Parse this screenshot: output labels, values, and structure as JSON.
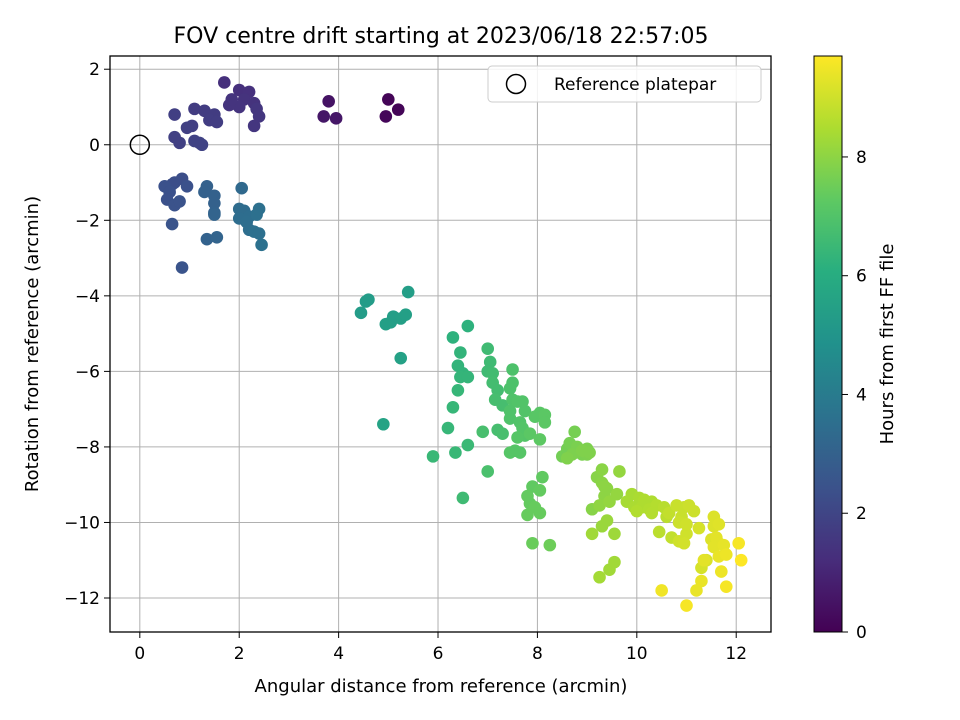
{
  "chart_data": {
    "type": "scatter",
    "title": "FOV centre drift starting at 2023/06/18 22:57:05",
    "xlabel": "Angular distance from reference (arcmin)",
    "ylabel": "Rotation from reference (arcmin)",
    "xlim": [
      -0.6,
      12.7
    ],
    "ylim": [
      -12.9,
      2.35
    ],
    "xticks": [
      0,
      2,
      4,
      6,
      8,
      10,
      12
    ],
    "yticks": [
      -12,
      -10,
      -8,
      -6,
      -4,
      -2,
      0,
      2
    ],
    "grid": true,
    "legend": {
      "position": "top-right",
      "entries": [
        "Reference platepar"
      ]
    },
    "reference_point": {
      "x": 0,
      "y": 0
    },
    "colorbar": {
      "label": "Hours from first FF file",
      "colormap": "viridis",
      "range": [
        0,
        9.7
      ],
      "ticks": [
        0,
        2,
        4,
        6,
        8
      ]
    },
    "points": [
      [
        5.0,
        1.2,
        0.1
      ],
      [
        5.2,
        0.93,
        0.1
      ],
      [
        4.95,
        0.75,
        0.15
      ],
      [
        3.8,
        1.15,
        0.5
      ],
      [
        3.7,
        0.75,
        0.6
      ],
      [
        3.95,
        0.7,
        0.6
      ],
      [
        1.7,
        1.65,
        1.3
      ],
      [
        2.0,
        1.45,
        1.3
      ],
      [
        2.2,
        1.4,
        1.35
      ],
      [
        2.1,
        1.2,
        1.4
      ],
      [
        2.3,
        1.1,
        1.4
      ],
      [
        2.0,
        1.0,
        1.45
      ],
      [
        1.8,
        1.05,
        1.45
      ],
      [
        1.85,
        1.2,
        1.45
      ],
      [
        2.35,
        0.95,
        1.5
      ],
      [
        2.4,
        0.75,
        1.5
      ],
      [
        2.3,
        0.5,
        1.5
      ],
      [
        1.3,
        0.9,
        1.7
      ],
      [
        1.5,
        0.8,
        1.7
      ],
      [
        1.1,
        0.95,
        1.7
      ],
      [
        1.4,
        0.65,
        1.75
      ],
      [
        1.55,
        0.6,
        1.75
      ],
      [
        0.7,
        0.8,
        1.8
      ],
      [
        1.05,
        0.5,
        1.8
      ],
      [
        0.95,
        0.45,
        1.85
      ],
      [
        0.7,
        0.2,
        1.85
      ],
      [
        0.8,
        0.05,
        1.85
      ],
      [
        1.2,
        0.05,
        1.9
      ],
      [
        1.25,
        0.0,
        1.9
      ],
      [
        1.1,
        0.1,
        1.9
      ],
      [
        0.7,
        -1.0,
        2.3
      ],
      [
        0.65,
        -1.05,
        2.3
      ],
      [
        0.85,
        -0.9,
        2.3
      ],
      [
        0.5,
        -1.1,
        2.4
      ],
      [
        0.95,
        -1.1,
        2.4
      ],
      [
        0.6,
        -1.25,
        2.4
      ],
      [
        0.55,
        -1.45,
        2.4
      ],
      [
        0.7,
        -1.6,
        2.45
      ],
      [
        0.8,
        -1.5,
        2.45
      ],
      [
        0.65,
        -2.1,
        2.5
      ],
      [
        0.85,
        -3.25,
        2.5
      ],
      [
        1.35,
        -1.1,
        3.0
      ],
      [
        1.3,
        -1.25,
        3.0
      ],
      [
        1.5,
        -1.35,
        3.0
      ],
      [
        1.5,
        -1.55,
        3.0
      ],
      [
        1.5,
        -1.8,
        3.05
      ],
      [
        1.35,
        -2.5,
        3.05
      ],
      [
        1.55,
        -2.45,
        3.1
      ],
      [
        1.5,
        -1.85,
        3.1
      ],
      [
        2.05,
        -1.15,
        3.3
      ],
      [
        2.0,
        -1.7,
        3.4
      ],
      [
        2.1,
        -1.75,
        3.4
      ],
      [
        2.2,
        -1.9,
        3.45
      ],
      [
        2.0,
        -1.95,
        3.45
      ],
      [
        2.15,
        -2.05,
        3.5
      ],
      [
        2.2,
        -2.25,
        3.5
      ],
      [
        2.3,
        -2.3,
        3.55
      ],
      [
        2.4,
        -2.35,
        3.55
      ],
      [
        2.35,
        -1.85,
        3.55
      ],
      [
        2.4,
        -1.7,
        3.55
      ],
      [
        2.45,
        -2.65,
        3.6
      ],
      [
        4.55,
        -4.15,
        5.3
      ],
      [
        4.6,
        -4.1,
        5.3
      ],
      [
        4.45,
        -4.45,
        5.3
      ],
      [
        5.1,
        -4.55,
        5.4
      ],
      [
        5.25,
        -4.6,
        5.45
      ],
      [
        5.35,
        -4.5,
        5.45
      ],
      [
        5.4,
        -3.9,
        5.4
      ],
      [
        5.05,
        -4.7,
        5.4
      ],
      [
        4.95,
        -4.75,
        5.45
      ],
      [
        5.25,
        -5.65,
        5.5
      ],
      [
        4.9,
        -7.4,
        5.6
      ],
      [
        6.3,
        -5.1,
        6.2
      ],
      [
        6.6,
        -4.8,
        6.2
      ],
      [
        6.45,
        -5.5,
        6.3
      ],
      [
        6.4,
        -5.85,
        6.3
      ],
      [
        6.5,
        -6.05,
        6.3
      ],
      [
        6.45,
        -6.15,
        6.35
      ],
      [
        6.6,
        -6.15,
        6.35
      ],
      [
        6.4,
        -6.5,
        6.4
      ],
      [
        6.3,
        -6.95,
        6.4
      ],
      [
        6.2,
        -7.5,
        6.4
      ],
      [
        6.35,
        -8.15,
        6.45
      ],
      [
        5.9,
        -8.25,
        6.45
      ],
      [
        6.6,
        -7.95,
        6.5
      ],
      [
        6.5,
        -9.35,
        6.6
      ],
      [
        7.0,
        -5.4,
        6.6
      ],
      [
        7.05,
        -5.75,
        6.6
      ],
      [
        7.0,
        -6.0,
        6.6
      ],
      [
        7.1,
        -6.05,
        6.65
      ],
      [
        7.1,
        -6.3,
        6.7
      ],
      [
        7.2,
        -6.5,
        6.7
      ],
      [
        7.15,
        -6.75,
        6.75
      ],
      [
        7.3,
        -6.9,
        6.75
      ],
      [
        7.2,
        -7.55,
        6.75
      ],
      [
        7.3,
        -7.65,
        6.8
      ],
      [
        6.9,
        -7.6,
        6.8
      ],
      [
        7.0,
        -8.65,
        6.85
      ],
      [
        7.5,
        -5.95,
        6.9
      ],
      [
        7.5,
        -6.3,
        6.9
      ],
      [
        7.45,
        -6.45,
        6.9
      ],
      [
        7.5,
        -6.75,
        6.95
      ],
      [
        7.45,
        -7.05,
        6.95
      ],
      [
        7.45,
        -7.25,
        6.95
      ],
      [
        7.7,
        -6.8,
        7.0
      ],
      [
        7.6,
        -6.8,
        7.0
      ],
      [
        7.75,
        -7.05,
        7.0
      ],
      [
        7.65,
        -7.35,
        7.0
      ],
      [
        7.7,
        -7.5,
        7.05
      ],
      [
        7.75,
        -7.7,
        7.05
      ],
      [
        7.6,
        -7.75,
        7.1
      ],
      [
        7.55,
        -8.1,
        7.1
      ],
      [
        7.45,
        -8.15,
        7.1
      ],
      [
        7.65,
        -8.15,
        7.1
      ],
      [
        7.95,
        -7.2,
        7.15
      ],
      [
        8.05,
        -7.1,
        7.15
      ],
      [
        8.15,
        -7.15,
        7.2
      ],
      [
        8.15,
        -7.35,
        7.2
      ],
      [
        7.85,
        -7.65,
        7.2
      ],
      [
        8.05,
        -7.8,
        7.25
      ],
      [
        8.1,
        -8.8,
        7.3
      ],
      [
        7.9,
        -9.05,
        7.3
      ],
      [
        8.05,
        -9.15,
        7.35
      ],
      [
        7.8,
        -9.3,
        7.35
      ],
      [
        7.85,
        -9.5,
        7.35
      ],
      [
        7.95,
        -9.6,
        7.4
      ],
      [
        8.05,
        -9.75,
        7.4
      ],
      [
        7.8,
        -9.8,
        7.4
      ],
      [
        7.9,
        -10.55,
        7.45
      ],
      [
        8.25,
        -10.6,
        7.5
      ],
      [
        8.5,
        -8.25,
        7.6
      ],
      [
        8.6,
        -8.05,
        7.6
      ],
      [
        8.65,
        -7.9,
        7.65
      ],
      [
        8.75,
        -7.6,
        7.65
      ],
      [
        8.8,
        -8.0,
        7.7
      ],
      [
        8.9,
        -8.2,
        7.7
      ],
      [
        9.0,
        -8.05,
        7.75
      ],
      [
        9.0,
        -8.2,
        7.75
      ],
      [
        8.7,
        -8.2,
        7.75
      ],
      [
        8.6,
        -8.3,
        7.8
      ],
      [
        8.9,
        -8.1,
        7.8
      ],
      [
        9.05,
        -8.15,
        7.8
      ],
      [
        9.1,
        -9.65,
        7.9
      ],
      [
        9.2,
        -8.8,
        7.9
      ],
      [
        9.3,
        -8.6,
        7.95
      ],
      [
        9.3,
        -8.95,
        7.95
      ],
      [
        9.35,
        -9.05,
        8.0
      ],
      [
        9.4,
        -9.1,
        8.0
      ],
      [
        9.35,
        -9.3,
        8.0
      ],
      [
        9.25,
        -9.55,
        8.05
      ],
      [
        9.45,
        -9.45,
        8.1
      ],
      [
        9.6,
        -9.25,
        8.1
      ],
      [
        9.65,
        -8.65,
        8.1
      ],
      [
        9.3,
        -10.1,
        8.2
      ],
      [
        9.4,
        -9.95,
        8.2
      ],
      [
        9.55,
        -10.3,
        8.25
      ],
      [
        9.45,
        -11.25,
        8.3
      ],
      [
        9.55,
        -11.05,
        8.3
      ],
      [
        9.25,
        -11.45,
        8.35
      ],
      [
        9.1,
        -10.3,
        8.3
      ],
      [
        9.9,
        -9.25,
        8.4
      ],
      [
        9.8,
        -9.45,
        8.4
      ],
      [
        9.95,
        -9.6,
        8.45
      ],
      [
        10.05,
        -9.35,
        8.45
      ],
      [
        10.15,
        -9.4,
        8.5
      ],
      [
        10.3,
        -9.45,
        8.5
      ],
      [
        10.1,
        -9.6,
        8.5
      ],
      [
        10.0,
        -9.7,
        8.55
      ],
      [
        10.25,
        -9.65,
        8.55
      ],
      [
        10.4,
        -9.55,
        8.6
      ],
      [
        10.3,
        -9.75,
        8.6
      ],
      [
        10.55,
        -9.6,
        8.65
      ],
      [
        10.6,
        -9.85,
        8.7
      ],
      [
        10.45,
        -10.25,
        8.7
      ],
      [
        10.7,
        -10.4,
        8.8
      ],
      [
        10.65,
        -9.75,
        8.8
      ],
      [
        10.8,
        -9.55,
        8.9
      ],
      [
        10.95,
        -9.6,
        8.9
      ],
      [
        11.05,
        -9.55,
        8.95
      ],
      [
        11.15,
        -9.7,
        8.95
      ],
      [
        10.9,
        -9.85,
        8.9
      ],
      [
        10.85,
        -10.0,
        8.95
      ],
      [
        11.0,
        -10.3,
        9.0
      ],
      [
        10.85,
        -10.5,
        9.0
      ],
      [
        10.95,
        -10.55,
        9.05
      ],
      [
        11.0,
        -10.05,
        9.0
      ],
      [
        11.25,
        -10.15,
        9.1
      ],
      [
        11.3,
        -11.2,
        9.1
      ],
      [
        11.4,
        -11.0,
        9.15
      ],
      [
        11.5,
        -10.45,
        9.2
      ],
      [
        11.55,
        -10.1,
        9.2
      ],
      [
        11.55,
        -9.85,
        9.2
      ],
      [
        11.65,
        -10.05,
        9.25
      ],
      [
        11.6,
        -10.4,
        9.3
      ],
      [
        11.65,
        -10.55,
        9.3
      ],
      [
        11.55,
        -10.65,
        9.3
      ],
      [
        11.75,
        -10.6,
        9.35
      ],
      [
        11.65,
        -10.9,
        9.4
      ],
      [
        11.8,
        -10.85,
        9.45
      ],
      [
        11.7,
        -11.3,
        9.45
      ],
      [
        11.3,
        -11.55,
        9.4
      ],
      [
        11.2,
        -11.8,
        9.4
      ],
      [
        10.5,
        -11.8,
        9.5
      ],
      [
        11.0,
        -12.2,
        9.6
      ],
      [
        12.05,
        -10.55,
        9.6
      ],
      [
        12.1,
        -11.0,
        9.7
      ],
      [
        11.8,
        -11.7,
        9.6
      ],
      [
        11.35,
        -11.0,
        9.3
      ]
    ]
  }
}
